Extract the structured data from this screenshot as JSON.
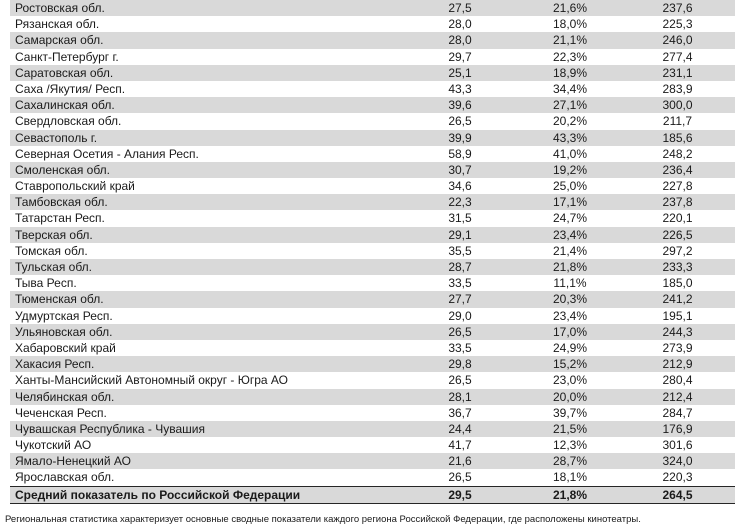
{
  "colors": {
    "row_shade": "#d9d9d9",
    "summary_border": "#262626",
    "text": "#1a1a1a"
  },
  "table": {
    "rows": [
      {
        "region": "Ростовская обл.",
        "values": [
          "27,5",
          "21,6%",
          "237,6"
        ]
      },
      {
        "region": "Рязанская обл.",
        "values": [
          "28,0",
          "18,0%",
          "225,3"
        ]
      },
      {
        "region": "Самарская обл.",
        "values": [
          "28,0",
          "21,1%",
          "246,0"
        ]
      },
      {
        "region": "Санкт-Петербург г.",
        "values": [
          "29,7",
          "22,3%",
          "277,4"
        ]
      },
      {
        "region": "Саратовская обл.",
        "values": [
          "25,1",
          "18,9%",
          "231,1"
        ]
      },
      {
        "region": "Саха /Якутия/ Респ.",
        "values": [
          "43,3",
          "34,4%",
          "283,9"
        ]
      },
      {
        "region": "Сахалинская обл.",
        "values": [
          "39,6",
          "27,1%",
          "300,0"
        ]
      },
      {
        "region": "Свердловская обл.",
        "values": [
          "26,5",
          "20,2%",
          "211,7"
        ]
      },
      {
        "region": "Севастополь г.",
        "values": [
          "39,9",
          "43,3%",
          "185,6"
        ]
      },
      {
        "region": "Северная Осетия - Алания Респ.",
        "values": [
          "58,9",
          "41,0%",
          "248,2"
        ]
      },
      {
        "region": "Смоленская обл.",
        "values": [
          "30,7",
          "19,2%",
          "236,4"
        ]
      },
      {
        "region": "Ставропольский край",
        "values": [
          "34,6",
          "25,0%",
          "227,8"
        ]
      },
      {
        "region": "Тамбовская обл.",
        "values": [
          "22,3",
          "17,1%",
          "237,8"
        ]
      },
      {
        "region": "Татарстан Респ.",
        "values": [
          "31,5",
          "24,7%",
          "220,1"
        ]
      },
      {
        "region": "Тверская обл.",
        "values": [
          "29,1",
          "23,4%",
          "226,5"
        ]
      },
      {
        "region": "Томская обл.",
        "values": [
          "35,5",
          "21,4%",
          "297,2"
        ]
      },
      {
        "region": "Тульская обл.",
        "values": [
          "28,7",
          "21,8%",
          "233,3"
        ]
      },
      {
        "region": "Тыва Респ.",
        "values": [
          "33,5",
          "11,1%",
          "185,0"
        ]
      },
      {
        "region": "Тюменская обл.",
        "values": [
          "27,7",
          "20,3%",
          "241,2"
        ]
      },
      {
        "region": "Удмуртская Респ.",
        "values": [
          "29,0",
          "23,4%",
          "195,1"
        ]
      },
      {
        "region": "Ульяновская обл.",
        "values": [
          "26,5",
          "17,0%",
          "244,3"
        ]
      },
      {
        "region": "Хабаровский край",
        "values": [
          "33,5",
          "24,9%",
          "273,9"
        ]
      },
      {
        "region": "Хакасия Респ.",
        "values": [
          "29,8",
          "15,2%",
          "212,9"
        ]
      },
      {
        "region": "Ханты-Мансийский Автономный округ - Югра АО",
        "values": [
          "26,5",
          "23,0%",
          "280,4"
        ]
      },
      {
        "region": "Челябинская обл.",
        "values": [
          "28,1",
          "20,0%",
          "212,4"
        ]
      },
      {
        "region": "Чеченская Респ.",
        "values": [
          "36,7",
          "39,7%",
          "284,7"
        ]
      },
      {
        "region": "Чувашская Республика - Чувашия",
        "values": [
          "24,4",
          "21,5%",
          "176,9"
        ]
      },
      {
        "region": "Чукотский АО",
        "values": [
          "41,7",
          "12,3%",
          "301,6"
        ]
      },
      {
        "region": "Ямало-Ненецкий АО",
        "values": [
          "21,6",
          "28,7%",
          "324,0"
        ]
      },
      {
        "region": "Ярославская обл.",
        "values": [
          "26,5",
          "18,1%",
          "220,3"
        ]
      }
    ],
    "summary": {
      "region": "Средний показатель по Российской Федерации",
      "values": [
        "29,5",
        "21,8%",
        "264,5"
      ]
    }
  },
  "footer": {
    "note": "Региональная статистика характеризует основные сводные показатели каждого региона Российской Федерации, где расположены кинотеатры."
  }
}
